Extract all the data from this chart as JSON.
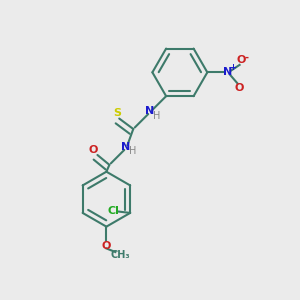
{
  "background_color": "#ebebeb",
  "bond_color": "#3d7a6a",
  "bond_width": 1.5,
  "atom_colors": {
    "N": "#1a1acc",
    "O": "#cc2222",
    "S": "#cccc00",
    "Cl": "#22aa22",
    "C": "#3d7a6a",
    "H": "#888888"
  },
  "figsize": [
    3.0,
    3.0
  ],
  "dpi": 100
}
